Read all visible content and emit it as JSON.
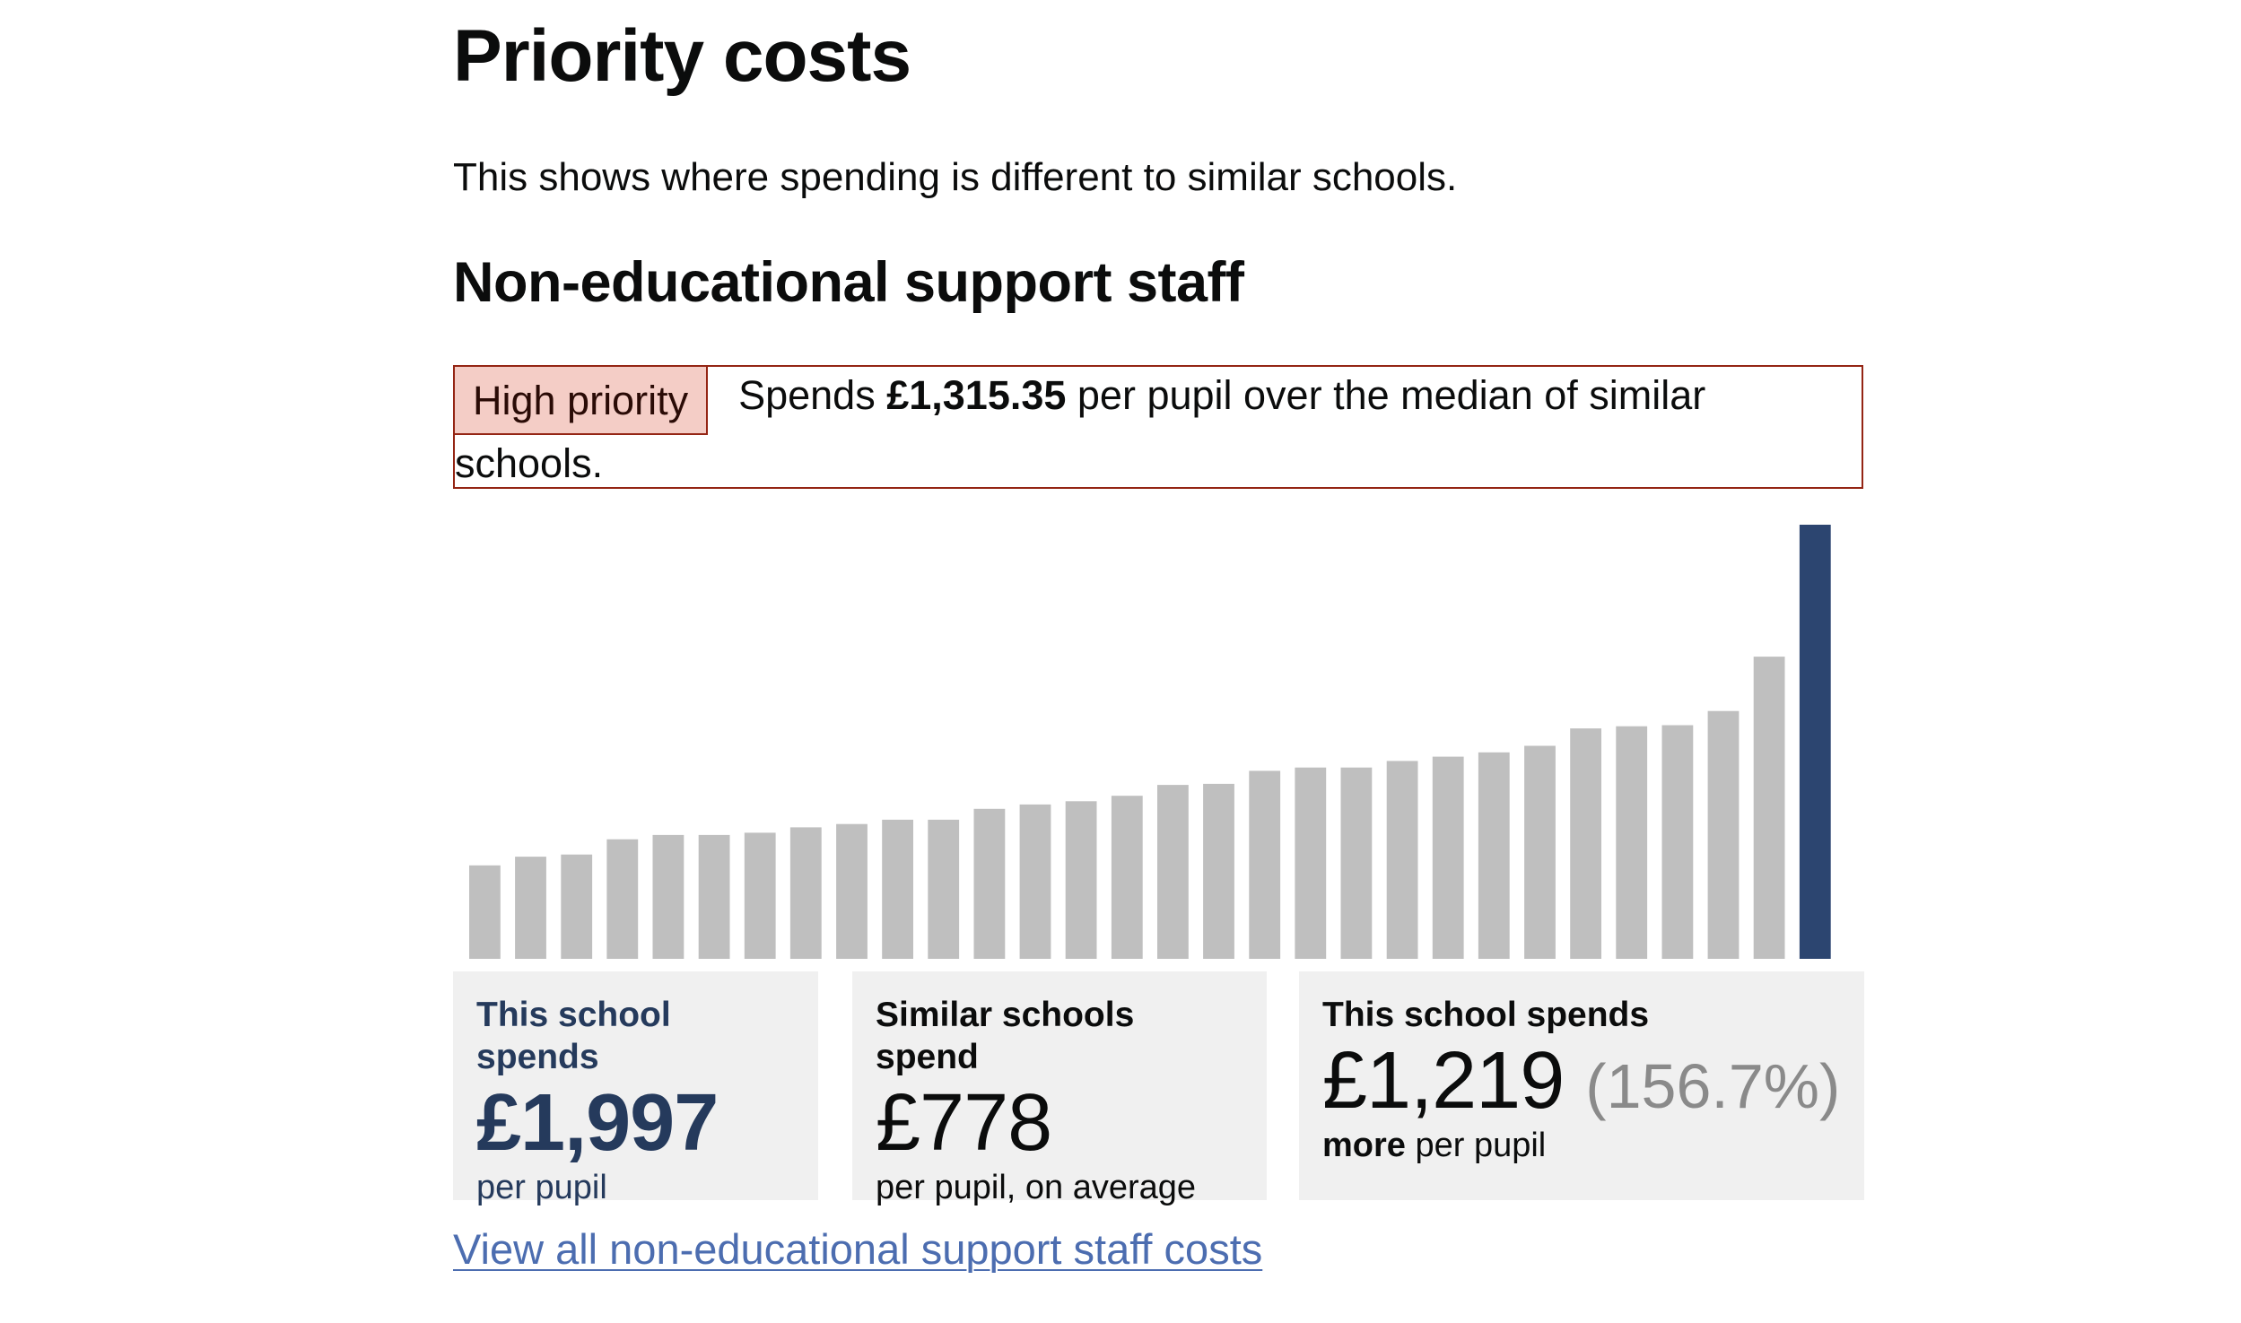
{
  "page": {
    "title": "Priority costs",
    "intro": "This shows where spending is different to similar schools."
  },
  "section": {
    "heading": "Non-educational support staff",
    "priority_tag": "High priority",
    "priority_prefix": "Spends ",
    "priority_amount": "£1,315.35",
    "priority_suffix": " per pupil over the median of similar schools."
  },
  "colors": {
    "priority_border": "#942514",
    "priority_fill": "#f4cdc6",
    "bar_other": "#bfbfbf",
    "bar_highlight": "#2c4570",
    "link": "#4c6db0"
  },
  "chart_data": {
    "type": "bar",
    "title": "",
    "xlabel": "",
    "ylabel": "",
    "ylim": [
      0,
      2000
    ],
    "values": [
      430,
      470,
      480,
      550,
      570,
      570,
      580,
      605,
      620,
      640,
      640,
      690,
      710,
      725,
      750,
      800,
      805,
      865,
      880,
      880,
      910,
      930,
      950,
      980,
      1060,
      1070,
      1075,
      1140,
      1390,
      1997
    ],
    "highlight_index": 29
  },
  "stats": {
    "this_school": {
      "label": "This school spends",
      "value": "£1,997",
      "sub": "per pupil"
    },
    "similar": {
      "label": "Similar schools spend",
      "value": "£778",
      "sub": "per pupil, on average"
    },
    "difference": {
      "label": "This school spends",
      "value": "£1,219",
      "percent": "(156.7%)",
      "sub_bold": "more",
      "sub_rest": " per pupil"
    }
  },
  "link": {
    "label": "View all non-educational support staff costs"
  }
}
